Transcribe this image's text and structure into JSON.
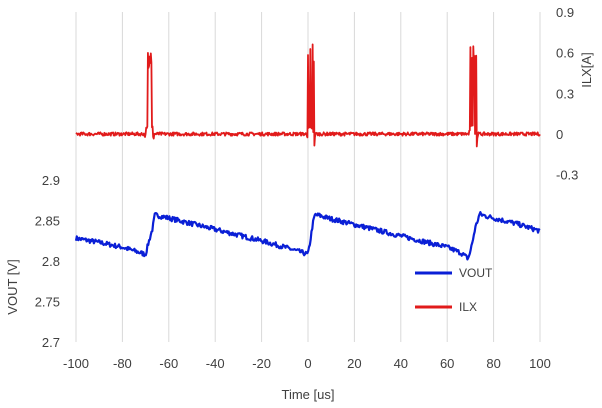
{
  "chart_data": {
    "type": "line",
    "xlabel": "Time [us]",
    "ylabel_left": "VOUT [V]",
    "ylabel_right": "ILX[A]",
    "xlim": [
      -100,
      100
    ],
    "xticks": [
      -100,
      -80,
      -60,
      -40,
      -20,
      0,
      20,
      40,
      60,
      80,
      100
    ],
    "y_left_ticks": [
      2.7,
      2.75,
      2.8,
      2.85,
      2.9
    ],
    "y_right_ticks": [
      -0.3,
      0,
      0.3,
      0.6,
      0.9
    ],
    "grid": "vertical",
    "legend_position": "bottom-right",
    "series": [
      {
        "name": "VOUT",
        "axis": "left",
        "color": "#0a1fd6",
        "x": [
          -100,
          -90,
          -80,
          -72,
          -70,
          -69,
          -67,
          -66,
          -60,
          -50,
          -40,
          -30,
          -20,
          -10,
          -2,
          0,
          1,
          2,
          3,
          5,
          10,
          20,
          30,
          40,
          50,
          60,
          66,
          69,
          70,
          71,
          72,
          74,
          76,
          80,
          90,
          100
        ],
        "y": [
          2.828,
          2.823,
          2.817,
          2.81,
          2.808,
          2.82,
          2.84,
          2.857,
          2.853,
          2.846,
          2.839,
          2.832,
          2.825,
          2.817,
          2.81,
          2.808,
          2.825,
          2.845,
          2.857,
          2.856,
          2.852,
          2.845,
          2.838,
          2.831,
          2.824,
          2.817,
          2.81,
          2.803,
          2.812,
          2.825,
          2.84,
          2.858,
          2.856,
          2.853,
          2.846,
          2.837
        ]
      },
      {
        "name": "ILX",
        "axis": "right",
        "color": "#e11b1b",
        "baseline": 0,
        "pulses": [
          {
            "x0": -70,
            "x1": -67,
            "peak": 0.65,
            "undershoot": -0.12
          },
          {
            "x0": 0,
            "x1": 2.5,
            "peak": 0.68,
            "undershoot": -0.1
          },
          {
            "x0": 70,
            "x1": 72.5,
            "peak": 0.67,
            "undershoot": -0.13
          }
        ]
      }
    ]
  }
}
